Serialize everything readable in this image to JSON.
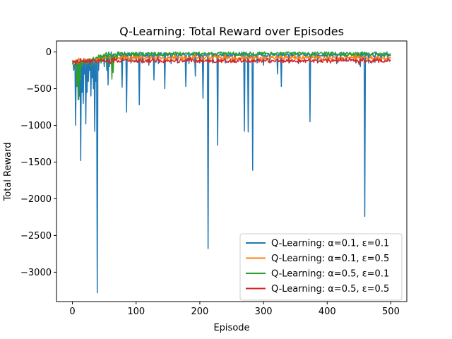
{
  "chart_data": {
    "type": "line",
    "title": "Q-Learning: Total Reward over Episodes",
    "xlabel": "Episode",
    "ylabel": "Total Reward",
    "xlim": [
      -25,
      525
    ],
    "ylim": [
      -3400,
      150
    ],
    "xticks": [
      0,
      100,
      200,
      300,
      400,
      500
    ],
    "yticks": [
      0,
      -500,
      -1000,
      -1500,
      -2000,
      -2500,
      -3000
    ],
    "grid": false,
    "legend_position": "lower-right",
    "episodes": 500,
    "series": [
      {
        "name": "Q-Learning: α=0.1, ε=0.1",
        "color": "#1f77b4",
        "baseline_start": -150,
        "baseline_end": -20,
        "spikes": [
          [
            2,
            -250
          ],
          [
            5,
            -1000
          ],
          [
            7,
            -450
          ],
          [
            9,
            -650
          ],
          [
            11,
            -600
          ],
          [
            13,
            -1480
          ],
          [
            15,
            -550
          ],
          [
            17,
            -700
          ],
          [
            19,
            -300
          ],
          [
            21,
            -980
          ],
          [
            23,
            -550
          ],
          [
            25,
            -400
          ],
          [
            27,
            -250
          ],
          [
            29,
            -600
          ],
          [
            31,
            -350
          ],
          [
            33,
            -500
          ],
          [
            35,
            -1080
          ],
          [
            37,
            -400
          ],
          [
            39,
            -3280
          ],
          [
            41,
            -250
          ],
          [
            45,
            -150
          ],
          [
            50,
            -200
          ],
          [
            54,
            -250
          ],
          [
            56,
            -450
          ],
          [
            58,
            -200
          ],
          [
            62,
            -150
          ],
          [
            70,
            -100
          ],
          [
            78,
            -480
          ],
          [
            85,
            -820
          ],
          [
            92,
            -150
          ],
          [
            100,
            -120
          ],
          [
            105,
            -720
          ],
          [
            110,
            -150
          ],
          [
            120,
            -180
          ],
          [
            128,
            -380
          ],
          [
            135,
            -160
          ],
          [
            145,
            -500
          ],
          [
            155,
            -160
          ],
          [
            165,
            -150
          ],
          [
            178,
            -470
          ],
          [
            183,
            -160
          ],
          [
            193,
            -330
          ],
          [
            200,
            -150
          ],
          [
            205,
            -630
          ],
          [
            213,
            -2680
          ],
          [
            220,
            -150
          ],
          [
            228,
            -1270
          ],
          [
            240,
            -150
          ],
          [
            255,
            -140
          ],
          [
            270,
            -1080
          ],
          [
            276,
            -1090
          ],
          [
            283,
            -1610
          ],
          [
            290,
            -150
          ],
          [
            300,
            -180
          ],
          [
            310,
            -150
          ],
          [
            322,
            -300
          ],
          [
            328,
            -470
          ],
          [
            340,
            -150
          ],
          [
            355,
            -160
          ],
          [
            373,
            -950
          ],
          [
            385,
            -150
          ],
          [
            400,
            -130
          ],
          [
            415,
            -160
          ],
          [
            430,
            -130
          ],
          [
            445,
            -150
          ],
          [
            452,
            -200
          ],
          [
            459,
            -2240
          ],
          [
            465,
            -150
          ],
          [
            475,
            -140
          ],
          [
            485,
            -120
          ],
          [
            495,
            -130
          ]
        ]
      },
      {
        "name": "Q-Learning: α=0.1, ε=0.5",
        "color": "#ff7f0e",
        "baseline_start": -110,
        "baseline_end": -60,
        "spikes": [
          [
            3,
            -140
          ],
          [
            8,
            -160
          ],
          [
            14,
            -200
          ],
          [
            22,
            -150
          ],
          [
            40,
            -130
          ],
          [
            90,
            -120
          ]
        ]
      },
      {
        "name": "Q-Learning: α=0.5, ε=0.1",
        "color": "#2ca02c",
        "baseline_start": -150,
        "baseline_end": -5,
        "spikes": [
          [
            4,
            -200
          ],
          [
            7,
            -470
          ],
          [
            8,
            -330
          ],
          [
            10,
            -650
          ],
          [
            12,
            -380
          ],
          [
            14,
            -200
          ],
          [
            18,
            -150
          ],
          [
            25,
            -120
          ],
          [
            30,
            -200
          ],
          [
            45,
            -150
          ],
          [
            55,
            -200
          ],
          [
            62,
            -370
          ],
          [
            64,
            -280
          ],
          [
            70,
            -100
          ],
          [
            80,
            -60
          ],
          [
            100,
            -50
          ]
        ]
      },
      {
        "name": "Q-Learning: α=0.5, ε=0.5",
        "color": "#d62728",
        "baseline_start": -110,
        "baseline_end": -100,
        "spikes": [
          [
            5,
            -180
          ],
          [
            20,
            -150
          ],
          [
            60,
            -160
          ],
          [
            120,
            -150
          ],
          [
            245,
            -140
          ],
          [
            405,
            -150
          ],
          [
            450,
            -170
          ],
          [
            470,
            -150
          ]
        ]
      }
    ]
  }
}
